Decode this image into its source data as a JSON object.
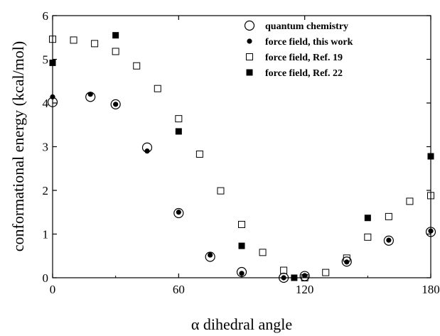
{
  "chart_data": {
    "type": "scatter",
    "title": "",
    "xlabel": "α dihedral angle",
    "ylabel": "conformational energy (kcal/mol)",
    "xlim": [
      0,
      180
    ],
    "ylim": [
      0,
      6
    ],
    "x_ticks": [
      "0",
      "60",
      "120",
      "180"
    ],
    "y_ticks": [
      "0",
      "1",
      "2",
      "3",
      "4",
      "5",
      "6"
    ],
    "grid": false,
    "legend_position": "top-right",
    "series": [
      {
        "name": "quantum chemistry",
        "marker": "open-circle",
        "points": [
          [
            0,
            4.02
          ],
          [
            18,
            4.14
          ],
          [
            30,
            3.97
          ],
          [
            45,
            2.98
          ],
          [
            60,
            1.48
          ],
          [
            75,
            0.48
          ],
          [
            90,
            0.13
          ],
          [
            110,
            0.0
          ],
          [
            120,
            0.04
          ],
          [
            140,
            0.37
          ],
          [
            160,
            0.85
          ],
          [
            180,
            1.05
          ]
        ]
      },
      {
        "name": "force field, this work",
        "marker": "filled-circle",
        "points": [
          [
            0,
            4.14
          ],
          [
            18,
            4.2
          ],
          [
            30,
            3.97
          ],
          [
            45,
            2.9
          ],
          [
            60,
            1.5
          ],
          [
            75,
            0.52
          ],
          [
            90,
            0.1
          ],
          [
            110,
            0.0
          ],
          [
            120,
            0.05
          ],
          [
            140,
            0.36
          ],
          [
            160,
            0.86
          ],
          [
            180,
            1.07
          ]
        ]
      },
      {
        "name": "force field, Ref. 19",
        "marker": "open-square",
        "points": [
          [
            0,
            5.46
          ],
          [
            10,
            5.44
          ],
          [
            20,
            5.36
          ],
          [
            30,
            5.18
          ],
          [
            40,
            4.85
          ],
          [
            50,
            4.33
          ],
          [
            60,
            3.64
          ],
          [
            70,
            2.83
          ],
          [
            80,
            1.99
          ],
          [
            90,
            1.22
          ],
          [
            100,
            0.58
          ],
          [
            110,
            0.17
          ],
          [
            120,
            0.0
          ],
          [
            130,
            0.12
          ],
          [
            140,
            0.45
          ],
          [
            150,
            0.93
          ],
          [
            160,
            1.4
          ],
          [
            170,
            1.75
          ],
          [
            180,
            1.88
          ]
        ]
      },
      {
        "name": "force field, Ref. 22",
        "marker": "filled-square",
        "points": [
          [
            0,
            4.92
          ],
          [
            30,
            5.55
          ],
          [
            60,
            3.35
          ],
          [
            90,
            0.73
          ],
          [
            115,
            0.0
          ],
          [
            150,
            1.37
          ],
          [
            180,
            2.78
          ]
        ]
      }
    ]
  }
}
